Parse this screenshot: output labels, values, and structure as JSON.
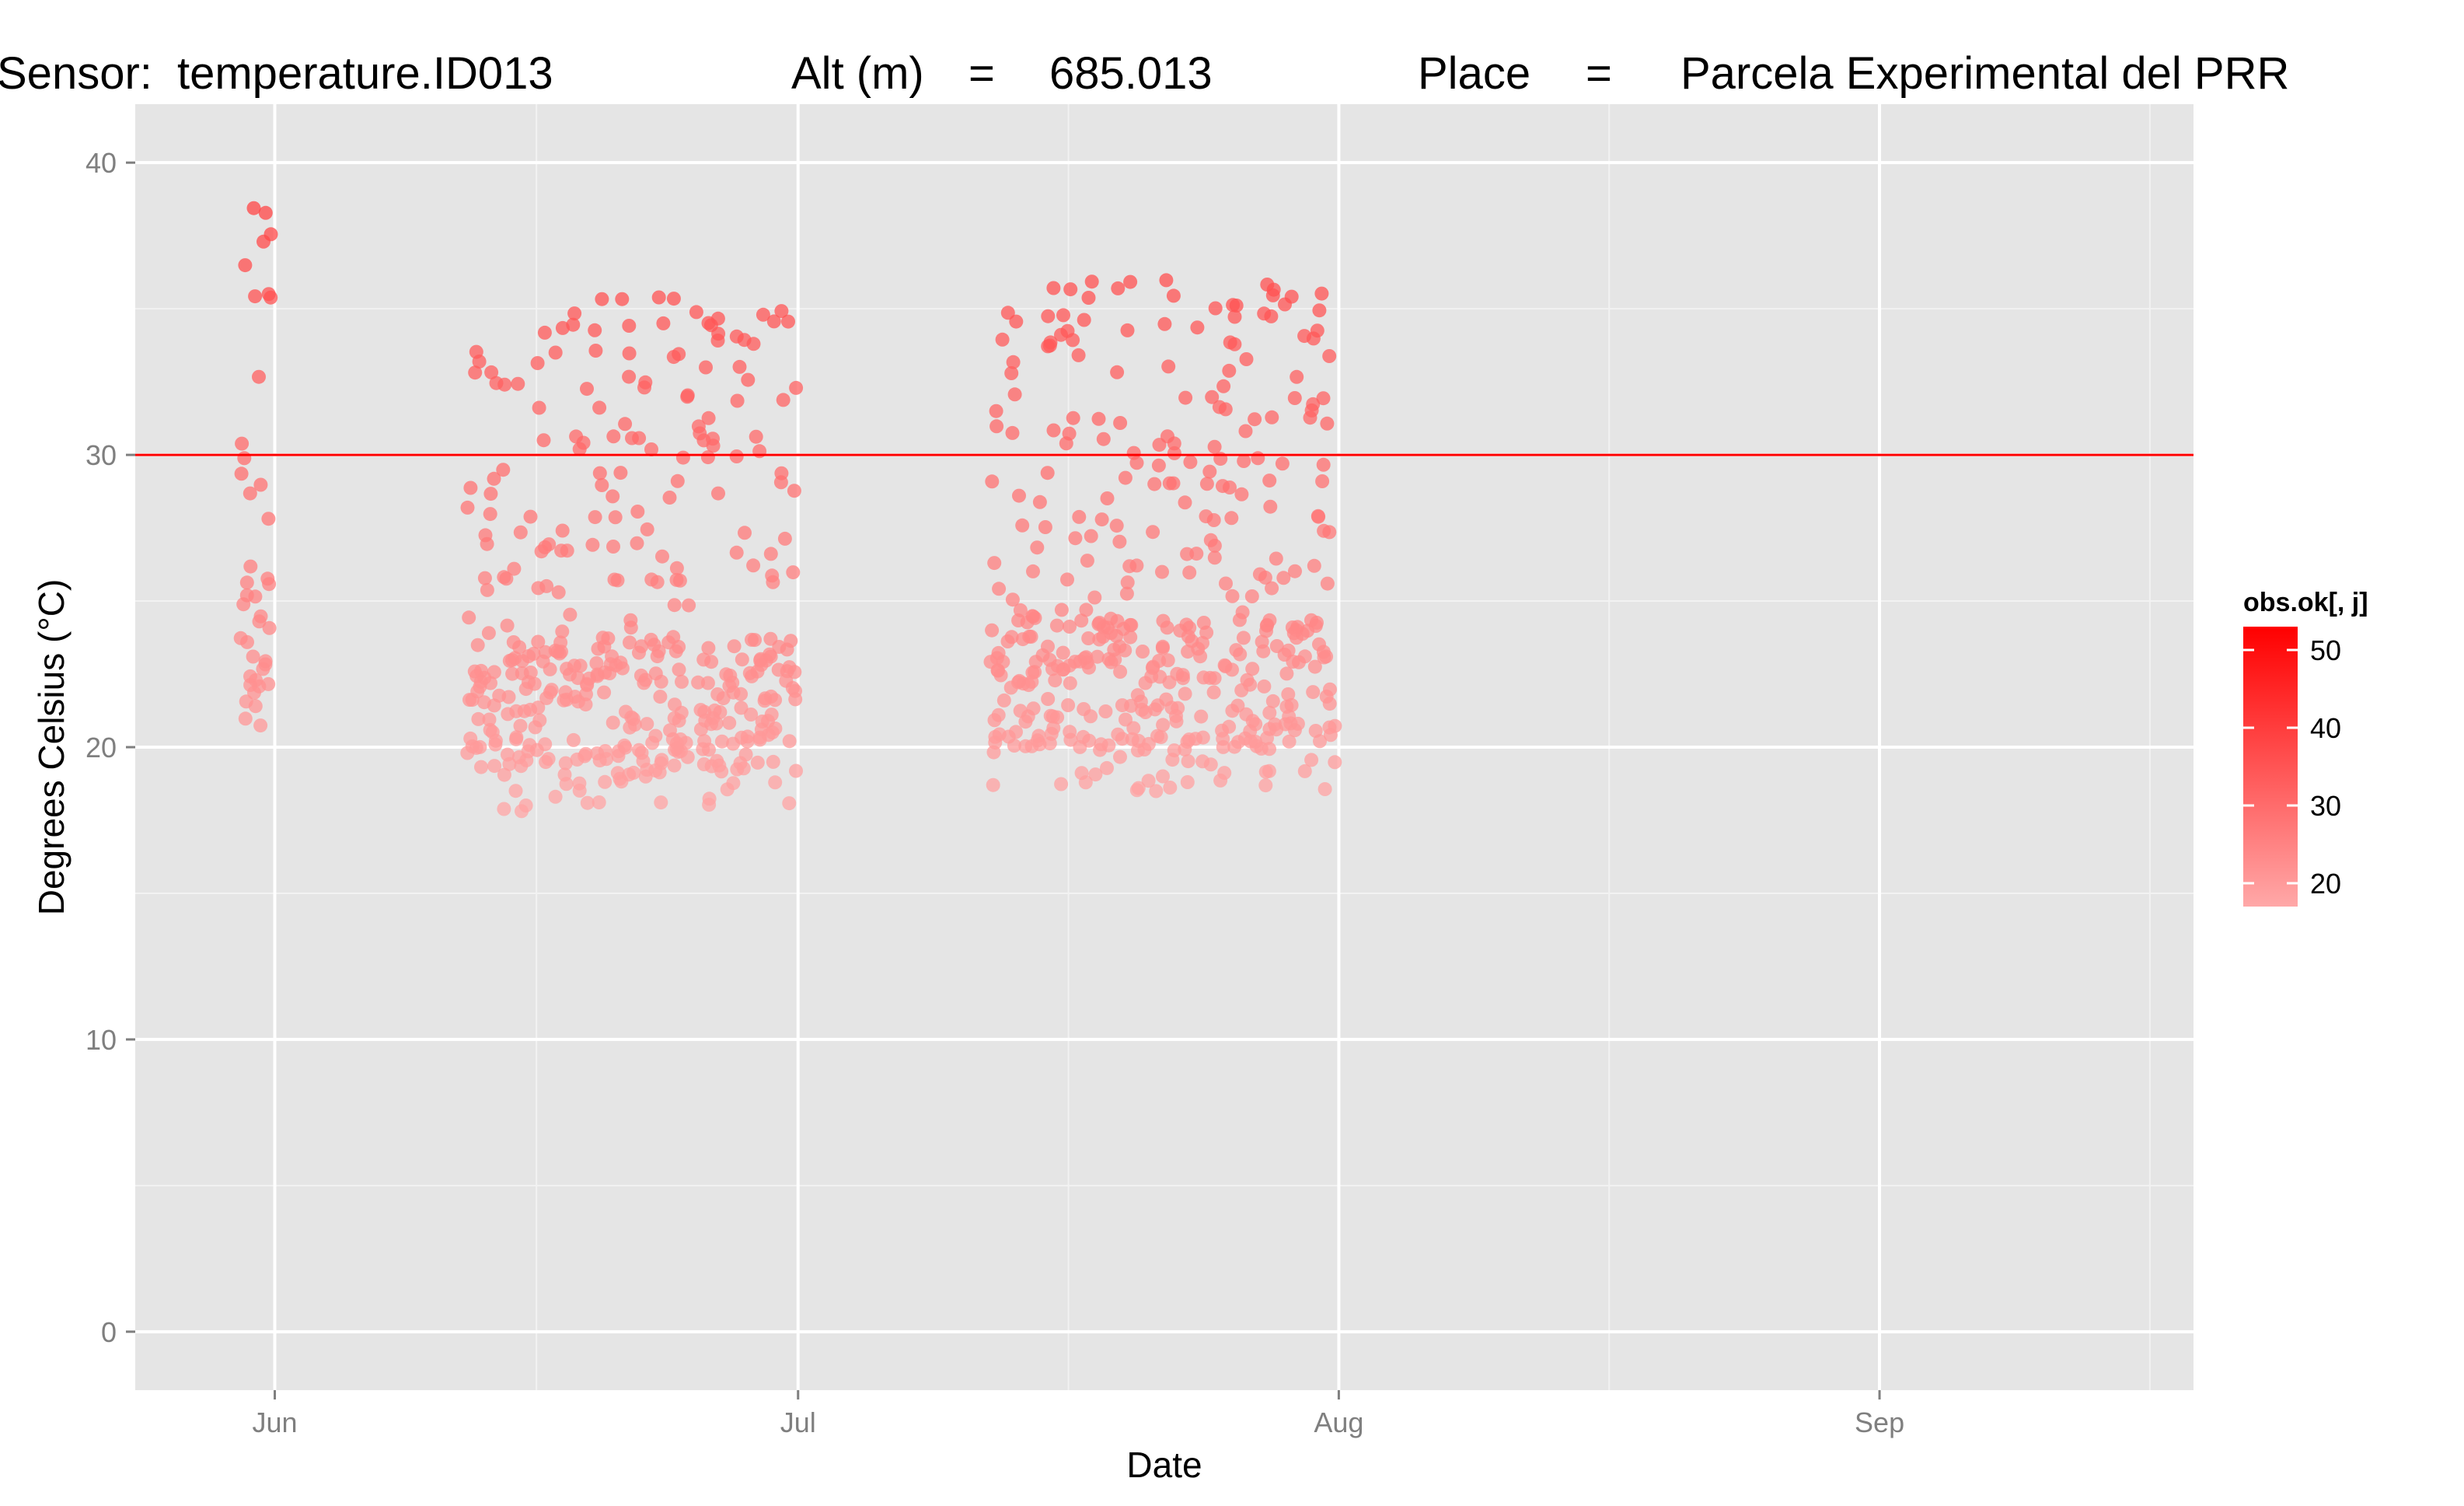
{
  "title": {
    "sensor_label": "Sensor:",
    "sensor_value": "temperature.ID013",
    "alt_label": "Alt (m)",
    "alt_eq": "=",
    "alt_value": "685.013",
    "place_label": "Place",
    "place_eq": "=",
    "place_value": "Parcela Experimental del PRR"
  },
  "colors": {
    "panel_bg": "#e5e5e5",
    "grid_major": "#ffffff",
    "grid_minor": "#f2f2f2",
    "threshold_line": "#ff0000",
    "point_low": "#ffa8a8",
    "point_high": "#ff0000"
  },
  "chart_data": {
    "type": "scatter",
    "xlabel": "Date",
    "ylabel": "Degrees Celsius (°C)",
    "x_ticks": [
      {
        "label": "Jun",
        "date": "Jun 1"
      },
      {
        "label": "Jul",
        "date": "Jul 1"
      },
      {
        "label": "Aug",
        "date": "Aug 1"
      },
      {
        "label": "Sep",
        "date": "Sep 1"
      }
    ],
    "x_range": [
      "May 24",
      "Sep 19"
    ],
    "y_ticks": [
      0,
      10,
      20,
      30,
      40
    ],
    "ylim": [
      -2,
      42
    ],
    "threshold": 30,
    "legend": {
      "title": "obs.ok[, j]",
      "breaks": [
        20,
        30,
        40,
        50
      ],
      "range": [
        17,
        53
      ],
      "placement": "right"
    },
    "clusters": [
      {
        "start": "May 30",
        "end": "May 31",
        "ymin": 20,
        "ymax": 39
      },
      {
        "start": "Jun 12",
        "end": "Jun 30",
        "ymin": 17.8,
        "ymax": 35.4
      },
      {
        "start": "Jul 12",
        "end": "Jul 31",
        "ymin": 18.4,
        "ymax": 36.2
      }
    ]
  }
}
